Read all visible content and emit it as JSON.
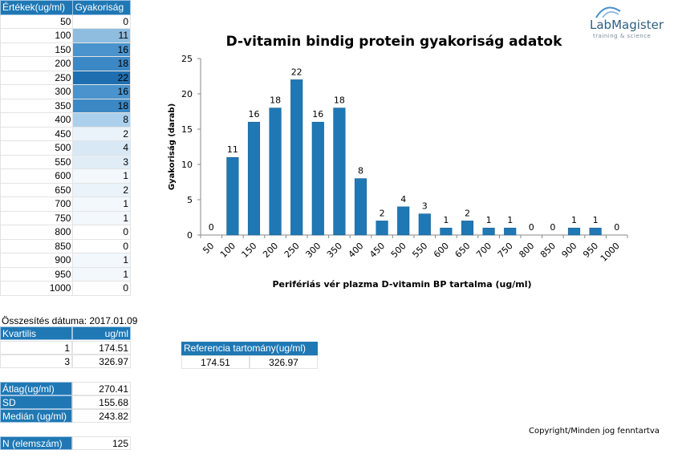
{
  "freq_table": {
    "headers": [
      "Értékek(ug/ml)",
      "Gyakoriság"
    ],
    "rows": [
      {
        "v": "50",
        "f": "0",
        "bg": "#ffffff",
        "fg": "#000000"
      },
      {
        "v": "100",
        "f": "11",
        "bg": "#8fbde0",
        "fg": "#000000"
      },
      {
        "v": "150",
        "f": "16",
        "bg": "#4a93cc",
        "fg": "#000000"
      },
      {
        "v": "200",
        "f": "18",
        "bg": "#3c88c4",
        "fg": "#000000"
      },
      {
        "v": "250",
        "f": "22",
        "bg": "#1f6fb0",
        "fg": "#000000"
      },
      {
        "v": "300",
        "f": "16",
        "bg": "#4a93cc",
        "fg": "#000000"
      },
      {
        "v": "350",
        "f": "18",
        "bg": "#3c88c4",
        "fg": "#000000"
      },
      {
        "v": "400",
        "f": "8",
        "bg": "#acd0ec",
        "fg": "#000000"
      },
      {
        "v": "450",
        "f": "2",
        "bg": "#eaf3fa",
        "fg": "#000000"
      },
      {
        "v": "500",
        "f": "4",
        "bg": "#d8e8f5",
        "fg": "#000000"
      },
      {
        "v": "550",
        "f": "3",
        "bg": "#e0edf7",
        "fg": "#000000"
      },
      {
        "v": "600",
        "f": "1",
        "bg": "#f2f8fc",
        "fg": "#000000"
      },
      {
        "v": "650",
        "f": "2",
        "bg": "#eaf3fa",
        "fg": "#000000"
      },
      {
        "v": "700",
        "f": "1",
        "bg": "#f2f8fc",
        "fg": "#000000"
      },
      {
        "v": "750",
        "f": "1",
        "bg": "#f2f8fc",
        "fg": "#000000"
      },
      {
        "v": "800",
        "f": "0",
        "bg": "#ffffff",
        "fg": "#000000"
      },
      {
        "v": "850",
        "f": "0",
        "bg": "#ffffff",
        "fg": "#000000"
      },
      {
        "v": "900",
        "f": "1",
        "bg": "#f2f8fc",
        "fg": "#000000"
      },
      {
        "v": "950",
        "f": "1",
        "bg": "#f2f8fc",
        "fg": "#000000"
      },
      {
        "v": "1000",
        "f": "0",
        "bg": "#ffffff",
        "fg": "#000000"
      }
    ]
  },
  "summary": {
    "date_label": "Összesítés dátuma: 2017.01.09",
    "quartile_header": {
      "label": "Kvartilis",
      "unit": "ug/ml"
    },
    "quartiles": [
      {
        "k": "1",
        "v": "174.51"
      },
      {
        "k": "3",
        "v": "326.97"
      }
    ],
    "mean": {
      "label": "Átlag(ug/ml)",
      "value": "270.41"
    },
    "sd": {
      "label": "SD",
      "value": "155.68"
    },
    "median": {
      "label": "Medián (ug/ml)",
      "value": "243.82"
    },
    "n": {
      "label": "N (elemszám)",
      "value": "125"
    }
  },
  "reference": {
    "header": "Referencia tartomány(ug/ml)",
    "low": "174.51",
    "high": "326.97"
  },
  "logo": {
    "name": "LabMagister",
    "tagline": "training & science"
  },
  "copyright": "Copyright/Minden jog fenntartva",
  "colors": {
    "accent": "#1f78b4",
    "bar": "#1f78b4"
  },
  "chart_data": {
    "type": "bar",
    "title": "D-vitamin bindig protein gyakoriság adatok",
    "xlabel": "Perifériás vér plazma D-vitamin BP tartalma (ug/ml)",
    "ylabel": "Gyakoriság (darab)",
    "categories": [
      "50",
      "100",
      "150",
      "200",
      "250",
      "300",
      "350",
      "400",
      "450",
      "500",
      "550",
      "600",
      "650",
      "700",
      "750",
      "800",
      "850",
      "900",
      "950",
      "1000"
    ],
    "values": [
      0,
      11,
      16,
      18,
      22,
      16,
      18,
      8,
      2,
      4,
      3,
      1,
      2,
      1,
      1,
      0,
      0,
      1,
      1,
      0
    ],
    "ylim": [
      0,
      25
    ],
    "yticks": [
      0,
      5,
      10,
      15,
      20,
      25
    ],
    "data_labels": true,
    "grid": false
  }
}
